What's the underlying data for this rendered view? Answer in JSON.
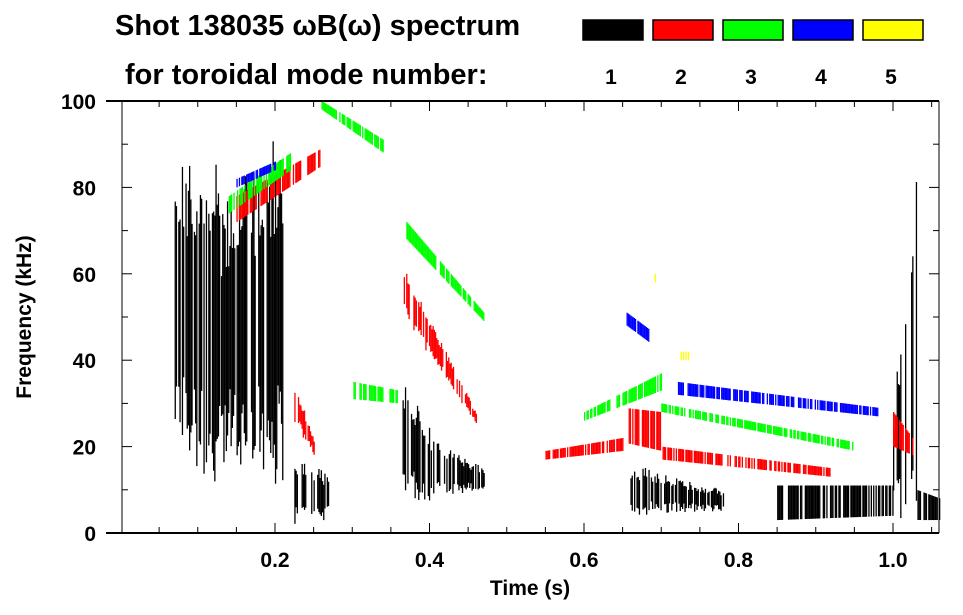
{
  "chart_data": {
    "type": "heatmap",
    "title": "Shot 138035 ωB(ω) spectrum",
    "subtitle": "for toroidal mode number:",
    "xlabel": "Time (s)",
    "ylabel": "Frequency (kHz)",
    "xlim": [
      0.0,
      1.06
    ],
    "ylim": [
      0,
      100
    ],
    "xticks": [
      "0.2",
      "0.4",
      "0.6",
      "0.8",
      "1.0"
    ],
    "xtick_values": [
      0.2,
      0.4,
      0.6,
      0.8,
      1.0
    ],
    "yticks": [
      "0",
      "20",
      "40",
      "60",
      "80",
      "100"
    ],
    "ytick_values": [
      0,
      20,
      40,
      60,
      80,
      100
    ],
    "legend": [
      {
        "label": "1",
        "color": "#000000"
      },
      {
        "label": "2",
        "color": "#ff0000"
      },
      {
        "label": "3",
        "color": "#00ff00"
      },
      {
        "label": "4",
        "color": "#0000ff"
      },
      {
        "label": "5",
        "color": "#ffff00"
      }
    ],
    "legend_placement": "top-right",
    "series": [
      {
        "name": "n=1",
        "color": "#000000",
        "bands": [
          {
            "t": [
              0.07,
              0.13
            ],
            "f_start": [
              20,
              90
            ],
            "f_end": [
              5,
              85
            ]
          },
          {
            "t": [
              0.13,
              0.21
            ],
            "f_start": [
              15,
              75
            ],
            "f_end": [
              10,
              95
            ]
          },
          {
            "t": [
              0.225,
              0.27
            ],
            "f_start": [
              2,
              18
            ],
            "f_end": [
              3,
              14
            ]
          },
          {
            "t": [
              0.365,
              0.4
            ],
            "f_start": [
              8,
              35
            ],
            "f_end": [
              6,
              25
            ]
          },
          {
            "t": [
              0.4,
              0.47
            ],
            "f_start": [
              8,
              22
            ],
            "f_end": [
              10,
              15
            ]
          },
          {
            "t": [
              0.66,
              0.78
            ],
            "f_start": [
              4,
              16
            ],
            "f_end": [
              5,
              10
            ]
          },
          {
            "t": [
              0.85,
              1.0
            ],
            "f_start": [
              3,
              11
            ],
            "f_end": [
              4,
              11
            ]
          },
          {
            "t": [
              1.0,
              1.03
            ],
            "f_start": [
              3,
              30
            ],
            "f_end": [
              3,
              90
            ]
          },
          {
            "t": [
              1.03,
              1.06
            ],
            "f_start": [
              3,
              10
            ],
            "f_end": [
              3,
              8
            ]
          }
        ]
      },
      {
        "name": "n=2",
        "color": "#ff0000",
        "bands": [
          {
            "t": [
              0.15,
              0.26
            ],
            "f_start": [
              72,
              78
            ],
            "f_end": [
              85,
              89
            ]
          },
          {
            "t": [
              0.225,
              0.25
            ],
            "f_start": [
              25,
              35
            ],
            "f_end": [
              18,
              22
            ]
          },
          {
            "t": [
              0.365,
              0.46
            ],
            "f_start": [
              50,
              62
            ],
            "f_end": [
              25,
              28
            ]
          },
          {
            "t": [
              0.55,
              0.65
            ],
            "f_start": [
              17,
              19
            ],
            "f_end": [
              19,
              22
            ]
          },
          {
            "t": [
              0.65,
              0.7
            ],
            "f_start": [
              21,
              29
            ],
            "f_end": [
              19,
              28
            ]
          },
          {
            "t": [
              0.7,
              0.92
            ],
            "f_start": [
              17,
              20
            ],
            "f_end": [
              13,
              15
            ]
          },
          {
            "t": [
              1.0,
              1.025
            ],
            "f_start": [
              20,
              28
            ],
            "f_end": [
              18,
              22
            ]
          }
        ]
      },
      {
        "name": "n=3",
        "color": "#00ff00",
        "bands": [
          {
            "t": [
              0.14,
              0.22
            ],
            "f_start": [
              74,
              78
            ],
            "f_end": [
              84,
              88
            ]
          },
          {
            "t": [
              0.26,
              0.34
            ],
            "f_start": [
              98,
              100
            ],
            "f_end": [
              88,
              91
            ]
          },
          {
            "t": [
              0.37,
              0.47
            ],
            "f_start": [
              68,
              72
            ],
            "f_end": [
              49,
              51
            ]
          },
          {
            "t": [
              0.3,
              0.36
            ],
            "f_start": [
              31,
              35
            ],
            "f_end": [
              30,
              33
            ]
          },
          {
            "t": [
              0.6,
              0.7
            ],
            "f_start": [
              26,
              28
            ],
            "f_end": [
              33,
              37
            ]
          },
          {
            "t": [
              0.7,
              0.95
            ],
            "f_start": [
              28,
              30
            ],
            "f_end": [
              19,
              21
            ]
          }
        ]
      },
      {
        "name": "n=4",
        "color": "#0000ff",
        "bands": [
          {
            "t": [
              0.15,
              0.2
            ],
            "f_start": [
              80,
              82
            ],
            "f_end": [
              84,
              86
            ]
          },
          {
            "t": [
              0.655,
              0.685
            ],
            "f_start": [
              48,
              51
            ],
            "f_end": [
              44,
              47
            ]
          },
          {
            "t": [
              0.72,
              0.98
            ],
            "f_start": [
              32,
              35
            ],
            "f_end": [
              27,
              29
            ]
          }
        ]
      },
      {
        "name": "n=5",
        "color": "#ffff00",
        "bands": [
          {
            "t": [
              0.725,
              0.735
            ],
            "f_start": [
              40,
              42
            ],
            "f_end": [
              40,
              42
            ]
          },
          {
            "t": [
              0.69,
              0.695
            ],
            "f_start": [
              58,
              60
            ],
            "f_end": [
              58,
              60
            ]
          }
        ]
      }
    ]
  }
}
